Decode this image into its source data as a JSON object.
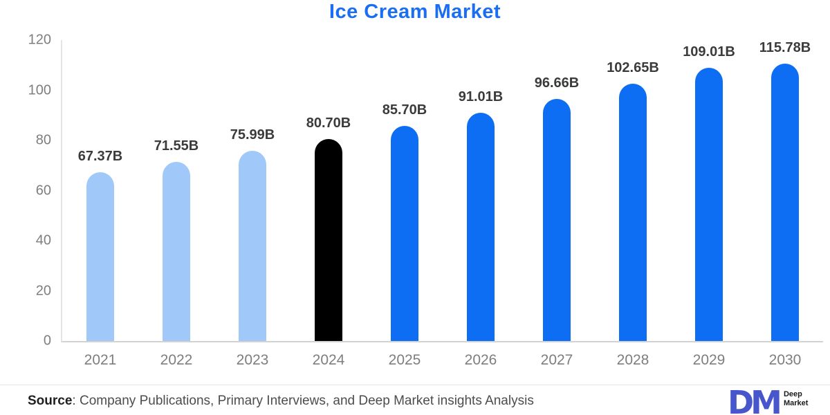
{
  "title": "Ice Cream Market",
  "colors": {
    "accent": "#1b6ef2",
    "past_bar": "#a0c8f8",
    "current_bar": "#000000",
    "forecast_bar": "#0d6ef4",
    "logo": "#4856cc"
  },
  "chart_data": {
    "type": "bar",
    "title": "Ice Cream Market",
    "categories": [
      "2021",
      "2022",
      "2023",
      "2024",
      "2025",
      "2026",
      "2027",
      "2028",
      "2029",
      "2030"
    ],
    "values": [
      67.37,
      71.55,
      75.99,
      80.7,
      85.7,
      91.01,
      96.66,
      102.65,
      109.01,
      115.78
    ],
    "labels": [
      "67.37B",
      "71.55B",
      "75.99B",
      "80.70B",
      "85.70B",
      "91.01B",
      "96.66B",
      "102.65B",
      "109.01B",
      "115.78B"
    ],
    "bar_colors": [
      "#a0c8f8",
      "#a0c8f8",
      "#a0c8f8",
      "#000000",
      "#0d6ef4",
      "#0d6ef4",
      "#0d6ef4",
      "#0d6ef4",
      "#0d6ef4",
      "#0d6ef4"
    ],
    "xlabel": "",
    "ylabel": "",
    "ylim": [
      0,
      120
    ],
    "yticks": [
      0,
      20,
      40,
      60,
      80,
      100,
      120
    ],
    "grid": false,
    "legend": false
  },
  "footer": {
    "source_label": "Source",
    "source_text": ": Company Publications, Primary Interviews, and Deep Market insights Analysis",
    "logo": {
      "monogram": "DM",
      "lines": [
        "Deep",
        "Market"
      ]
    }
  }
}
